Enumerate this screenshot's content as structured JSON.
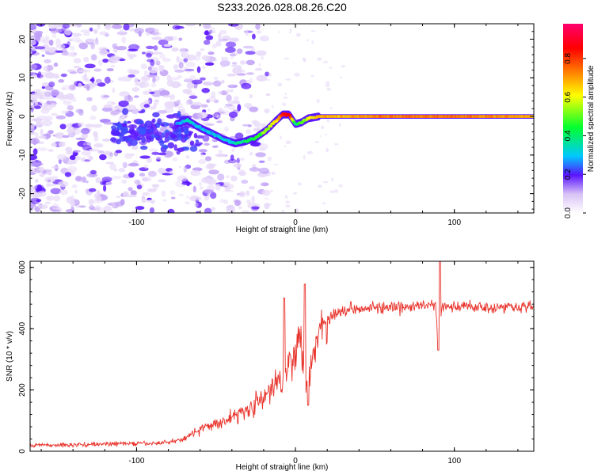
{
  "figure_title": "S233.2026.028.08.26.C20",
  "colors": {
    "snr_line": "#e8322a",
    "axis": "#000000",
    "colormap": [
      "#ffffff",
      "#d8c2f5",
      "#7a2cf0",
      "#2a10ff",
      "#00c8ff",
      "#00ff30",
      "#ffff00",
      "#ff7a00",
      "#ff0000",
      "#ff006e"
    ]
  },
  "chart_data": [
    {
      "type": "heatmap",
      "title": "S233.2026.028.08.26.C20",
      "xlabel": "Height of straight line (km)",
      "ylabel": "Frequency (Hz)",
      "xlim": [
        -167,
        150
      ],
      "ylim": [
        -25,
        24
      ],
      "xticks": [
        -100,
        0,
        100
      ],
      "yticks": [
        -20,
        -10,
        0,
        10,
        20
      ],
      "colorbar": {
        "label": "Normalized spectral amplitude",
        "range": [
          0,
          0.98
        ],
        "ticks": [
          0.0,
          0.2,
          0.4,
          0.6,
          0.8
        ]
      },
      "ridge": {
        "description": "dominant frequency track vs height",
        "x": [
          -75,
          -68,
          -60,
          -52,
          -45,
          -38,
          -32,
          -25,
          -18,
          -12,
          -8,
          -4,
          0,
          4,
          8,
          15,
          30,
          60,
          100,
          150
        ],
        "freq": [
          -2,
          -1,
          -3,
          -4.5,
          -6,
          -7,
          -6.5,
          -5.5,
          -3.5,
          -1,
          0.5,
          0.5,
          -2,
          -1.5,
          -0.5,
          0,
          0,
          0,
          0,
          0
        ],
        "amplitude": [
          0.25,
          0.35,
          0.3,
          0.3,
          0.3,
          0.35,
          0.4,
          0.45,
          0.55,
          0.65,
          0.85,
          0.9,
          0.4,
          0.5,
          0.6,
          0.7,
          0.7,
          0.75,
          0.75,
          0.7
        ]
      }
    },
    {
      "type": "line",
      "xlabel": "Height of straight line (km)",
      "ylabel": "SNR (10 * v/v)",
      "xlim": [
        -167,
        150
      ],
      "ylim": [
        0,
        620
      ],
      "xticks": [
        -100,
        0,
        100
      ],
      "yticks": [
        0,
        200,
        400,
        600
      ],
      "series": [
        {
          "name": "SNR",
          "x": [
            -167,
            -150,
            -130,
            -110,
            -90,
            -80,
            -70,
            -65,
            -60,
            -50,
            -40,
            -30,
            -20,
            -15,
            -10,
            -5,
            0,
            3,
            6,
            8,
            10,
            13,
            16,
            20,
            25,
            30,
            40,
            50,
            60,
            70,
            80,
            88,
            90,
            92,
            100,
            110,
            120,
            130,
            140,
            150
          ],
          "y": [
            20,
            20,
            22,
            25,
            25,
            30,
            40,
            60,
            70,
            90,
            110,
            140,
            170,
            200,
            240,
            280,
            340,
            360,
            280,
            200,
            300,
            360,
            400,
            430,
            450,
            460,
            470,
            470,
            465,
            470,
            475,
            480,
            350,
            470,
            470,
            475,
            470,
            470,
            475,
            470
          ]
        }
      ],
      "spikes": [
        {
          "x": -7,
          "y": 500
        },
        {
          "x": 6,
          "y": 545
        },
        {
          "x": 8,
          "y": 150
        },
        {
          "x": 91,
          "y": 620
        },
        {
          "x": 90,
          "y": 330
        }
      ]
    }
  ]
}
